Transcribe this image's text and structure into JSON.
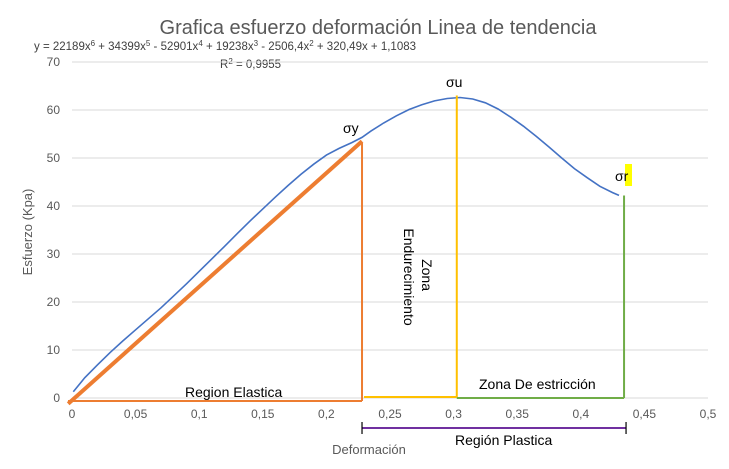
{
  "chart_data": {
    "type": "line",
    "title": "Grafica esfuerzo deformación Linea de tendencia",
    "equation": {
      "prefix": "y = 22189x",
      "terms": [
        {
          "coef": "22189x",
          "exp": "6",
          "sep": " + "
        },
        {
          "coef": "34399x",
          "exp": "5",
          "sep": " - "
        },
        {
          "coef": "52901x",
          "exp": "4",
          "sep": " + "
        },
        {
          "coef": "19238x",
          "exp": "3",
          "sep": " - "
        },
        {
          "coef": "2506,4x",
          "exp": "2",
          "sep": " + "
        },
        {
          "coef": "320,49x + 1,1083",
          "exp": "",
          "sep": ""
        }
      ]
    },
    "r_squared": {
      "base": "R",
      "exp": "2",
      "value": " = 0,9955"
    },
    "xlabel": "Deformación",
    "ylabel": "Esfuerzo (Kpa)",
    "xlim": [
      0,
      0.5
    ],
    "ylim": [
      0,
      70
    ],
    "x_ticks": [
      "0",
      "0,05",
      "0,1",
      "0,15",
      "0,2",
      "0,25",
      "0,3",
      "0,35",
      "0,4",
      "0,45",
      "0,5"
    ],
    "y_ticks": [
      "0",
      "10",
      "20",
      "30",
      "40",
      "50",
      "60",
      "70"
    ],
    "grid": "horizontal",
    "series": [
      {
        "color": "#4472C4",
        "x": [
          0.001,
          0.01,
          0.02,
          0.03,
          0.04,
          0.05,
          0.06,
          0.07,
          0.08,
          0.09,
          0.1,
          0.11,
          0.12,
          0.13,
          0.14,
          0.15,
          0.16,
          0.17,
          0.18,
          0.19,
          0.2,
          0.21,
          0.22,
          0.228,
          0.235,
          0.245,
          0.255,
          0.265,
          0.275,
          0.285,
          0.295,
          0.305,
          0.315,
          0.325,
          0.335,
          0.345,
          0.355,
          0.365,
          0.375,
          0.385,
          0.395,
          0.405,
          0.415,
          0.425,
          0.43
        ],
        "y": [
          1.3,
          4.2,
          6.9,
          9.5,
          11.9,
          14.2,
          16.5,
          18.8,
          21.3,
          23.8,
          26.4,
          29.0,
          31.6,
          34.3,
          36.9,
          39.4,
          41.9,
          44.3,
          46.6,
          48.7,
          50.6,
          52.0,
          53.2,
          54.3,
          55.6,
          57.3,
          58.8,
          60.1,
          61.1,
          61.9,
          62.4,
          62.6,
          62.3,
          61.5,
          60.2,
          58.5,
          56.6,
          54.5,
          52.3,
          50.0,
          47.8,
          45.9,
          44.1,
          42.8,
          42.2
        ]
      }
    ],
    "linear_fit": {
      "color": "#ED7D31",
      "x": [
        -0.003,
        0.228
      ],
      "y": [
        -1.2,
        53.5
      ]
    },
    "annotations": {
      "sigma_y": "σy",
      "sigma_u": "σu",
      "sigma_r": "σr",
      "zona_endurecimiento": [
        "Zona",
        "Endurecimiento"
      ],
      "zona_estriccion": "Zona De estricción",
      "region_elastica": "Region Elastica",
      "region_plastica": "Región Plastica"
    },
    "colors": {
      "orange": "#ED7D31",
      "yellow": "#FFC000",
      "green": "#70AD47",
      "purple": "#7030A0",
      "blue": "#4472C4",
      "highlight": "#FFFF00"
    }
  }
}
